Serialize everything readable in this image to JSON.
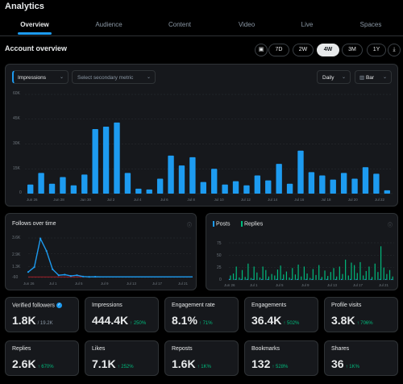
{
  "app": {
    "title": "Analytics"
  },
  "tabs": [
    "Overview",
    "Audience",
    "Content",
    "Video",
    "Live",
    "Spaces"
  ],
  "overview": {
    "title": "Account overview"
  },
  "ranges": [
    "7D",
    "2W",
    "4W",
    "3M",
    "1Y"
  ],
  "active_range": "4W",
  "controls": {
    "primary_metric": "Impressions",
    "secondary_placeholder": "Select secondary metric",
    "interval": "Daily",
    "chart_type": "Bar"
  },
  "main_chart": {
    "y_ticks": [
      "60K",
      "45K",
      "30K",
      "15K",
      "0"
    ],
    "x_ticks": [
      "Jun 26",
      "Jun 28",
      "Jun 30",
      "Jul 2",
      "Jul 4",
      "Jul 6",
      "Jul 8",
      "Jul 10",
      "Jul 12",
      "Jul 14",
      "Jul 16",
      "Jul 18",
      "Jul 20",
      "Jul 22"
    ]
  },
  "follows": {
    "title": "Follows over time",
    "y_ticks": [
      "3.6K",
      "2.9K",
      "1.3K",
      "-60"
    ],
    "x_ticks": [
      "Jun 26",
      "Jul 1",
      "Jul 5",
      "Jul 9",
      "Jul 13",
      "Jul 17",
      "Jul 21"
    ]
  },
  "posts_replies": {
    "legend": [
      "Posts",
      "Replies"
    ],
    "y_ticks": [
      "75",
      "50",
      "25",
      "0"
    ],
    "x_ticks": [
      "Jun 26",
      "Jul 1",
      "Jul 5",
      "Jul 9",
      "Jul 13",
      "Jul 17",
      "Jul 21"
    ]
  },
  "metrics_row1": [
    {
      "label": "Verified followers",
      "value": "1.8K",
      "sub": "/ 19.2K",
      "change": ""
    },
    {
      "label": "Impressions",
      "value": "444.4K",
      "sub": "",
      "change": "↑ 250%"
    },
    {
      "label": "Engagement rate",
      "value": "8.1%",
      "sub": "",
      "change": "↑ 71%"
    },
    {
      "label": "Engagements",
      "value": "36.4K",
      "sub": "",
      "change": "↑ 502%"
    },
    {
      "label": "Profile visits",
      "value": "3.8K",
      "sub": "",
      "change": "↑ 706%"
    }
  ],
  "metrics_row2": [
    {
      "label": "Replies",
      "value": "2.6K",
      "change": "↑ 670%"
    },
    {
      "label": "Likes",
      "value": "7.1K",
      "change": "↑ 252%"
    },
    {
      "label": "Reposts",
      "value": "1.6K",
      "change": "↑ 1K%"
    },
    {
      "label": "Bookmarks",
      "value": "132",
      "change": "↑ 528%"
    },
    {
      "label": "Shares",
      "value": "36",
      "change": "↑ 1K%"
    }
  ],
  "colors": {
    "blue": "#1d9bf0",
    "green": "#00ba7c",
    "red": "#f4212e"
  },
  "chart_data": [
    {
      "type": "bar",
      "ylim": [
        0,
        60000
      ],
      "values": [
        5500,
        12500,
        6000,
        10000,
        5000,
        11500,
        39000,
        40500,
        43000,
        12500,
        3000,
        2500,
        9000,
        23000,
        17000,
        22000,
        7000,
        15000,
        5500,
        7500,
        5000,
        11000,
        8000,
        18000,
        6000,
        26000,
        13000,
        11000,
        8500,
        12500,
        9000,
        16000,
        12000,
        2000
      ]
    },
    {
      "type": "line",
      "ylim": [
        -60,
        3600
      ],
      "values": [
        450,
        900,
        3550,
        2400,
        700,
        150,
        200,
        80,
        150,
        30,
        0,
        10,
        0,
        0,
        0,
        0,
        0,
        0,
        0,
        0,
        0,
        0,
        0,
        0,
        0,
        0,
        0,
        0
      ]
    },
    {
      "type": "bar",
      "ylim": [
        0,
        75
      ],
      "series": [
        {
          "name": "Posts",
          "values": [
            1,
            0,
            1,
            0,
            1,
            0,
            1,
            0,
            1,
            0,
            0,
            1,
            0,
            1,
            0,
            0,
            1,
            0,
            1,
            0,
            0,
            1,
            0,
            1,
            0,
            0,
            1,
            0,
            1,
            0,
            0,
            1,
            0,
            1,
            0,
            0,
            1,
            0,
            1,
            0,
            0,
            1,
            0,
            1,
            0,
            0,
            1,
            0,
            1,
            0,
            0,
            1,
            0,
            1,
            0,
            1
          ]
        },
        {
          "name": "Replies",
          "values": [
            9,
            13,
            27,
            5,
            20,
            6,
            33,
            4,
            27,
            15,
            5,
            27,
            20,
            7,
            12,
            9,
            21,
            29,
            11,
            17,
            5,
            24,
            11,
            31,
            7,
            27,
            13,
            4,
            22,
            10,
            30,
            6,
            19,
            8,
            16,
            24,
            7,
            27,
            12,
            41,
            9,
            35,
            30,
            14,
            36,
            9,
            18,
            27,
            6,
            33,
            16,
            68,
            25,
            12,
            20,
            7
          ]
        }
      ]
    }
  ]
}
